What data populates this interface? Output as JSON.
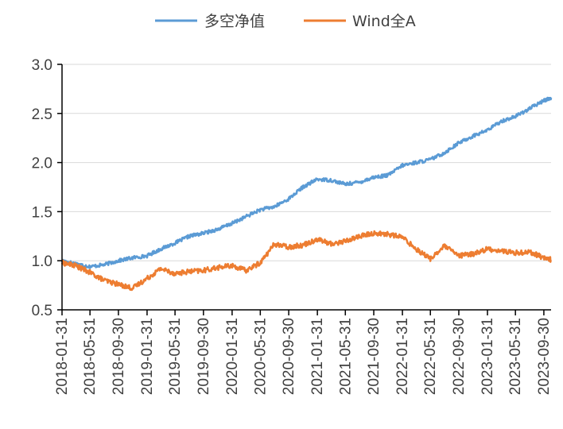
{
  "chart_data": {
    "type": "line",
    "title": "",
    "xlabel": "",
    "ylabel": "",
    "ylim": [
      0.5,
      3.0
    ],
    "y_ticks": [
      "0.5",
      "1.0",
      "1.5",
      "2.0",
      "2.5",
      "3.0"
    ],
    "x_ticks": [
      "2018-01-31",
      "2018-05-31",
      "2018-09-30",
      "2019-01-31",
      "2019-05-31",
      "2019-09-30",
      "2020-01-31",
      "2020-05-31",
      "2020-09-30",
      "2021-01-31",
      "2021-05-31",
      "2021-09-30",
      "2022-01-31",
      "2022-05-31",
      "2022-09-30",
      "2023-01-31",
      "2023-05-31",
      "2023-09-30"
    ],
    "grid": "horizontal",
    "legend_position": "top",
    "x": [
      "2018-01-31",
      "2018-03-31",
      "2018-05-31",
      "2018-07-31",
      "2018-09-30",
      "2018-11-30",
      "2019-01-31",
      "2019-03-31",
      "2019-05-31",
      "2019-07-31",
      "2019-09-30",
      "2019-11-30",
      "2020-01-31",
      "2020-03-31",
      "2020-05-31",
      "2020-07-31",
      "2020-09-30",
      "2020-11-30",
      "2021-01-31",
      "2021-03-31",
      "2021-05-31",
      "2021-07-31",
      "2021-09-30",
      "2021-11-30",
      "2022-01-31",
      "2022-03-31",
      "2022-05-31",
      "2022-07-31",
      "2022-09-30",
      "2022-11-30",
      "2023-01-31",
      "2023-03-31",
      "2023-05-31",
      "2023-07-31",
      "2023-09-30",
      "2023-10-31"
    ],
    "series": [
      {
        "name": "多空净值",
        "color": "#5b9bd5",
        "values": [
          1.0,
          0.97,
          0.94,
          0.96,
          1.0,
          1.03,
          1.05,
          1.12,
          1.18,
          1.25,
          1.28,
          1.32,
          1.38,
          1.45,
          1.52,
          1.55,
          1.63,
          1.75,
          1.83,
          1.82,
          1.78,
          1.8,
          1.85,
          1.87,
          1.97,
          2.0,
          2.03,
          2.1,
          2.2,
          2.27,
          2.33,
          2.42,
          2.47,
          2.55,
          2.63,
          2.66
        ]
      },
      {
        "name": "Wind全A",
        "color": "#ed7d31",
        "values": [
          0.98,
          0.95,
          0.88,
          0.8,
          0.76,
          0.72,
          0.82,
          0.92,
          0.87,
          0.89,
          0.9,
          0.93,
          0.95,
          0.9,
          0.98,
          1.17,
          1.14,
          1.16,
          1.22,
          1.17,
          1.2,
          1.25,
          1.28,
          1.27,
          1.24,
          1.12,
          1.02,
          1.15,
          1.05,
          1.07,
          1.12,
          1.1,
          1.08,
          1.09,
          1.03,
          1.01
        ]
      }
    ]
  }
}
